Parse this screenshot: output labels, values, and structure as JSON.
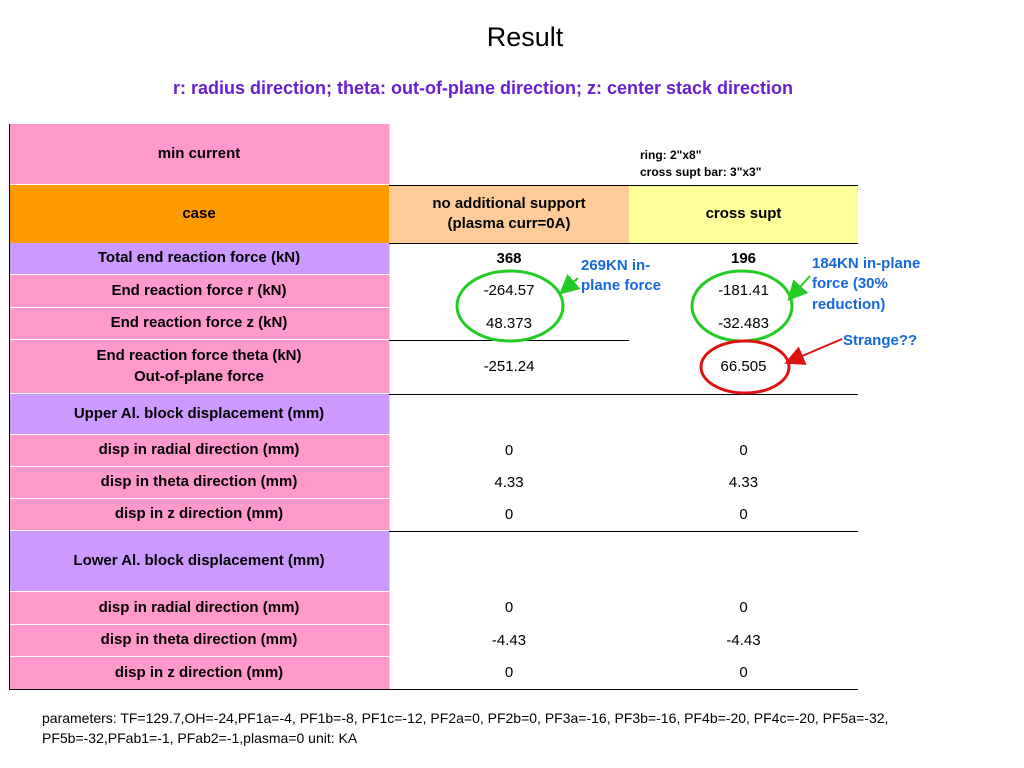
{
  "title": "Result",
  "subtitle": "r: radius direction; theta: out-of-plane direction; z: center stack direction",
  "table": {
    "top_label": "min current",
    "note": "ring: 2\"x8\"\ncross supt bar: 3\"x3\"",
    "header": {
      "case_label": "case",
      "col1": "no additional support\n(plasma curr=0A)",
      "col2": "cross supt"
    },
    "rows": [
      {
        "label": "Total end reaction force (kN)",
        "v1": "368",
        "v2": "196"
      },
      {
        "label": "End reaction force r (kN)",
        "v1": "-264.57",
        "v2": "-181.41"
      },
      {
        "label": "End reaction force z (kN)",
        "v1": "48.373",
        "v2": "-32.483"
      },
      {
        "label": "End reaction force theta (kN)\nOut-of-plane force",
        "v1": "-251.24",
        "v2": "66.505"
      },
      {
        "label": "Upper Al. block displacement (mm)",
        "v1": "",
        "v2": ""
      },
      {
        "label": "disp in radial direction (mm)",
        "v1": "0",
        "v2": "0"
      },
      {
        "label": "disp in theta direction (mm)",
        "v1": "4.33",
        "v2": "4.33"
      },
      {
        "label": "disp in z direction (mm)",
        "v1": "0",
        "v2": "0"
      },
      {
        "label": "Lower Al. block displacement (mm)",
        "v1": "",
        "v2": ""
      },
      {
        "label": "disp in radial direction (mm)",
        "v1": "0",
        "v2": "0"
      },
      {
        "label": "disp in theta direction (mm)",
        "v1": "-4.43",
        "v2": "-4.43"
      },
      {
        "label": "disp in z direction (mm)",
        "v1": "0",
        "v2": "0"
      }
    ]
  },
  "annotations": {
    "a1": "269KN in-\nplane force",
    "a2": "184KN in-plane\nforce (30%\nreduction)",
    "a3": "Strange??"
  },
  "colors": {
    "pink": "#ff99cc",
    "purple": "#cc99ff",
    "orange": "#ff9900",
    "peach": "#ffcc99",
    "yellow": "#ffff99",
    "green_circle": "#22cc22",
    "red_circle": "#dd1111",
    "annotation_blue": "#1569d8",
    "subtitle_purple": "#6a1fd0"
  },
  "footer": "parameters: TF=129.7,OH=-24,PF1a=-4, PF1b=-8, PF1c=-12, PF2a=0, PF2b=0, PF3a=-16, PF3b=-16, PF4b=-20, PF4c=-20, PF5a=-32, PF5b=-32,PFab1=-1, PFab2=-1,plasma=0   unit: KA"
}
